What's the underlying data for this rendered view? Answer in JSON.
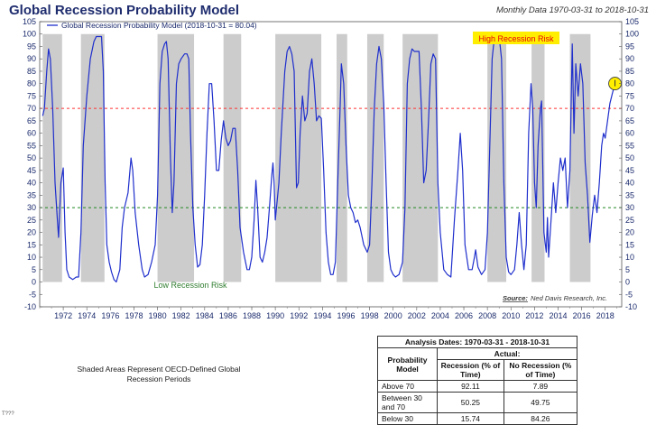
{
  "header": {
    "title": "Global Recession Probability Model",
    "date_range": "Monthly Data 1970-03-31 to 2018-10-31"
  },
  "chart_data": {
    "type": "line",
    "series": [
      {
        "name": "Global Recession Probability Model (2018-10-31 = 80.04)",
        "color": "#1f2fcc",
        "points": [
          [
            1970.25,
            67
          ],
          [
            1970.4,
            70
          ],
          [
            1970.6,
            85
          ],
          [
            1970.75,
            94
          ],
          [
            1970.9,
            90
          ],
          [
            1971.1,
            70
          ],
          [
            1971.3,
            40
          ],
          [
            1971.5,
            25
          ],
          [
            1971.6,
            18
          ],
          [
            1971.8,
            40
          ],
          [
            1972.0,
            46
          ],
          [
            1972.15,
            20
          ],
          [
            1972.3,
            5
          ],
          [
            1972.5,
            2
          ],
          [
            1972.8,
            1
          ],
          [
            1973.1,
            2
          ],
          [
            1973.3,
            2
          ],
          [
            1973.5,
            20
          ],
          [
            1973.7,
            55
          ],
          [
            1974.0,
            75
          ],
          [
            1974.3,
            90
          ],
          [
            1974.6,
            97
          ],
          [
            1974.8,
            99
          ],
          [
            1975.0,
            99
          ],
          [
            1975.25,
            99
          ],
          [
            1975.4,
            85
          ],
          [
            1975.55,
            40
          ],
          [
            1975.7,
            15
          ],
          [
            1975.9,
            8
          ],
          [
            1976.1,
            4
          ],
          [
            1976.3,
            1
          ],
          [
            1976.5,
            0
          ],
          [
            1976.8,
            5
          ],
          [
            1977.0,
            22
          ],
          [
            1977.2,
            30
          ],
          [
            1977.5,
            36
          ],
          [
            1977.75,
            50
          ],
          [
            1977.9,
            45
          ],
          [
            1978.1,
            28
          ],
          [
            1978.4,
            15
          ],
          [
            1978.7,
            5
          ],
          [
            1978.9,
            2
          ],
          [
            1979.2,
            3
          ],
          [
            1979.5,
            8
          ],
          [
            1979.8,
            15
          ],
          [
            1980.0,
            35
          ],
          [
            1980.2,
            80
          ],
          [
            1980.4,
            93
          ],
          [
            1980.6,
            96
          ],
          [
            1980.75,
            97
          ],
          [
            1980.9,
            90
          ],
          [
            1981.1,
            50
          ],
          [
            1981.25,
            28
          ],
          [
            1981.4,
            40
          ],
          [
            1981.6,
            80
          ],
          [
            1981.8,
            88
          ],
          [
            1982.0,
            90
          ],
          [
            1982.3,
            92
          ],
          [
            1982.5,
            92
          ],
          [
            1982.65,
            90
          ],
          [
            1982.8,
            60
          ],
          [
            1983.0,
            30
          ],
          [
            1983.2,
            15
          ],
          [
            1983.4,
            6
          ],
          [
            1983.6,
            7
          ],
          [
            1983.8,
            15
          ],
          [
            1984.0,
            35
          ],
          [
            1984.2,
            60
          ],
          [
            1984.4,
            80
          ],
          [
            1984.6,
            80
          ],
          [
            1984.8,
            65
          ],
          [
            1985.0,
            45
          ],
          [
            1985.2,
            45
          ],
          [
            1985.4,
            57
          ],
          [
            1985.6,
            65
          ],
          [
            1985.8,
            58
          ],
          [
            1986.0,
            55
          ],
          [
            1986.2,
            57
          ],
          [
            1986.4,
            62
          ],
          [
            1986.6,
            62
          ],
          [
            1986.8,
            45
          ],
          [
            1987.0,
            22
          ],
          [
            1987.3,
            12
          ],
          [
            1987.6,
            5
          ],
          [
            1987.8,
            5
          ],
          [
            1988.0,
            10
          ],
          [
            1988.2,
            25
          ],
          [
            1988.35,
            41
          ],
          [
            1988.5,
            30
          ],
          [
            1988.7,
            10
          ],
          [
            1988.9,
            8
          ],
          [
            1989.1,
            12
          ],
          [
            1989.3,
            18
          ],
          [
            1989.5,
            30
          ],
          [
            1989.7,
            43
          ],
          [
            1989.8,
            48
          ],
          [
            1989.9,
            40
          ],
          [
            1990.0,
            25
          ],
          [
            1990.3,
            40
          ],
          [
            1990.5,
            60
          ],
          [
            1990.8,
            85
          ],
          [
            1991.0,
            93
          ],
          [
            1991.2,
            95
          ],
          [
            1991.4,
            92
          ],
          [
            1991.6,
            85
          ],
          [
            1991.8,
            38
          ],
          [
            1991.95,
            40
          ],
          [
            1992.1,
            60
          ],
          [
            1992.3,
            75
          ],
          [
            1992.5,
            65
          ],
          [
            1992.7,
            68
          ],
          [
            1992.9,
            85
          ],
          [
            1993.1,
            90
          ],
          [
            1993.3,
            80
          ],
          [
            1993.5,
            65
          ],
          [
            1993.7,
            67
          ],
          [
            1993.9,
            66
          ],
          [
            1994.1,
            45
          ],
          [
            1994.3,
            20
          ],
          [
            1994.5,
            8
          ],
          [
            1994.7,
            3
          ],
          [
            1994.9,
            3
          ],
          [
            1995.1,
            8
          ],
          [
            1995.3,
            40
          ],
          [
            1995.5,
            70
          ],
          [
            1995.6,
            88
          ],
          [
            1995.8,
            80
          ],
          [
            1996.0,
            55
          ],
          [
            1996.2,
            35
          ],
          [
            1996.4,
            30
          ],
          [
            1996.6,
            28
          ],
          [
            1996.8,
            24
          ],
          [
            1997.0,
            25
          ],
          [
            1997.2,
            22
          ],
          [
            1997.5,
            15
          ],
          [
            1997.8,
            12
          ],
          [
            1998.0,
            15
          ],
          [
            1998.2,
            40
          ],
          [
            1998.4,
            70
          ],
          [
            1998.6,
            88
          ],
          [
            1998.8,
            95
          ],
          [
            1999.0,
            90
          ],
          [
            1999.2,
            72
          ],
          [
            1999.4,
            40
          ],
          [
            1999.6,
            12
          ],
          [
            1999.8,
            5
          ],
          [
            2000.0,
            3
          ],
          [
            2000.2,
            2
          ],
          [
            2000.5,
            3
          ],
          [
            2000.8,
            8
          ],
          [
            2001.0,
            30
          ],
          [
            2001.2,
            80
          ],
          [
            2001.4,
            90
          ],
          [
            2001.6,
            94
          ],
          [
            2001.8,
            93
          ],
          [
            2002.0,
            93
          ],
          [
            2002.2,
            93
          ],
          [
            2002.4,
            70
          ],
          [
            2002.6,
            40
          ],
          [
            2002.8,
            45
          ],
          [
            2003.0,
            65
          ],
          [
            2003.2,
            88
          ],
          [
            2003.4,
            92
          ],
          [
            2003.6,
            90
          ],
          [
            2003.8,
            40
          ],
          [
            2004.0,
            20
          ],
          [
            2004.3,
            5
          ],
          [
            2004.6,
            3
          ],
          [
            2004.9,
            2
          ],
          [
            2005.2,
            25
          ],
          [
            2005.5,
            45
          ],
          [
            2005.7,
            60
          ],
          [
            2005.9,
            45
          ],
          [
            2006.1,
            15
          ],
          [
            2006.4,
            5
          ],
          [
            2006.7,
            5
          ],
          [
            2006.9,
            10
          ],
          [
            2007.0,
            13
          ],
          [
            2007.2,
            6
          ],
          [
            2007.5,
            3
          ],
          [
            2007.8,
            5
          ],
          [
            2008.0,
            20
          ],
          [
            2008.2,
            55
          ],
          [
            2008.4,
            90
          ],
          [
            2008.6,
            99
          ],
          [
            2008.8,
            99
          ],
          [
            2009.0,
            99
          ],
          [
            2009.2,
            90
          ],
          [
            2009.4,
            40
          ],
          [
            2009.6,
            10
          ],
          [
            2009.8,
            4
          ],
          [
            2010.0,
            3
          ],
          [
            2010.3,
            5
          ],
          [
            2010.5,
            15
          ],
          [
            2010.7,
            28
          ],
          [
            2010.9,
            15
          ],
          [
            2011.1,
            5
          ],
          [
            2011.3,
            15
          ],
          [
            2011.5,
            60
          ],
          [
            2011.7,
            80
          ],
          [
            2011.85,
            70
          ],
          [
            2012.0,
            40
          ],
          [
            2012.15,
            30
          ],
          [
            2012.3,
            55
          ],
          [
            2012.5,
            70
          ],
          [
            2012.6,
            73
          ],
          [
            2012.8,
            20
          ],
          [
            2013.0,
            12
          ],
          [
            2013.1,
            26
          ],
          [
            2013.2,
            10
          ],
          [
            2013.4,
            25
          ],
          [
            2013.6,
            40
          ],
          [
            2013.8,
            28
          ],
          [
            2014.0,
            40
          ],
          [
            2014.2,
            50
          ],
          [
            2014.4,
            45
          ],
          [
            2014.6,
            50
          ],
          [
            2014.8,
            30
          ],
          [
            2015.0,
            45
          ],
          [
            2015.2,
            96
          ],
          [
            2015.35,
            60
          ],
          [
            2015.5,
            88
          ],
          [
            2015.7,
            75
          ],
          [
            2015.9,
            88
          ],
          [
            2016.1,
            80
          ],
          [
            2016.3,
            48
          ],
          [
            2016.5,
            35
          ],
          [
            2016.7,
            16
          ],
          [
            2016.9,
            27
          ],
          [
            2017.1,
            35
          ],
          [
            2017.3,
            28
          ],
          [
            2017.5,
            40
          ],
          [
            2017.7,
            55
          ],
          [
            2017.85,
            60
          ],
          [
            2018.0,
            58
          ],
          [
            2018.2,
            65
          ],
          [
            2018.4,
            72
          ],
          [
            2018.6,
            76
          ],
          [
            2018.83,
            80.04
          ]
        ]
      }
    ],
    "recession_periods": [
      [
        1970.25,
        1971.9
      ],
      [
        1973.5,
        1975.5
      ],
      [
        1980.0,
        1983.1
      ],
      [
        1985.6,
        1987.1
      ],
      [
        1990.0,
        1993.9
      ],
      [
        1995.2,
        1996.1
      ],
      [
        1997.8,
        1999.2
      ],
      [
        2000.8,
        2003.8
      ],
      [
        2008.0,
        2009.6
      ],
      [
        2011.75,
        2012.85
      ],
      [
        2015.0,
        2016.75
      ]
    ],
    "xlim": [
      1970.0,
      2019.4
    ],
    "ylim": [
      -10,
      105
    ],
    "y_ticks": [
      -10,
      -5,
      0,
      5,
      10,
      15,
      20,
      25,
      30,
      35,
      40,
      45,
      50,
      55,
      60,
      65,
      70,
      75,
      80,
      85,
      90,
      95,
      100,
      105
    ],
    "x_ticks": [
      "1972",
      "1974",
      "1976",
      "1978",
      "1980",
      "1982",
      "1984",
      "1986",
      "1988",
      "1990",
      "1992",
      "1994",
      "1996",
      "1998",
      "2000",
      "2002",
      "2004",
      "2006",
      "2008",
      "2010",
      "2012",
      "2014",
      "2016",
      "2018"
    ],
    "high_threshold": 70,
    "low_threshold": 30,
    "colors": {
      "line": "#1f2fcc",
      "shade": "#cccccc",
      "high_line": "#ff3333",
      "low_line": "#228822",
      "highlight": "#ffee00",
      "high_label_text": "#e8000b",
      "low_label_text": "#2f7d2f"
    },
    "annotations": {
      "high_label": "High Recession Risk",
      "low_label": "Low Recession Risk",
      "source_label": "Source:",
      "source_text": "Ned Davis Research, Inc."
    },
    "legend": {
      "position": "top-left"
    }
  },
  "table": {
    "title": "Analysis Dates: 1970-03-31 - 2018-10-31",
    "actual_label": "Actual:",
    "row_header": "Probability Model",
    "col_recession": "Recession (% of Time)",
    "col_no_recession": "No Recession (% of Time)",
    "rows": [
      {
        "label": "Above 70",
        "recession": "92.11",
        "no_recession": "7.89"
      },
      {
        "label": "Between 30 and 70",
        "recession": "50.25",
        "no_recession": "49.75"
      },
      {
        "label": "Below 30",
        "recession": "15.74",
        "no_recession": "84.26"
      }
    ]
  },
  "footnote": "Shaded Areas Represent OECD-Defined Global Recession Periods",
  "corner_mark": "T???"
}
